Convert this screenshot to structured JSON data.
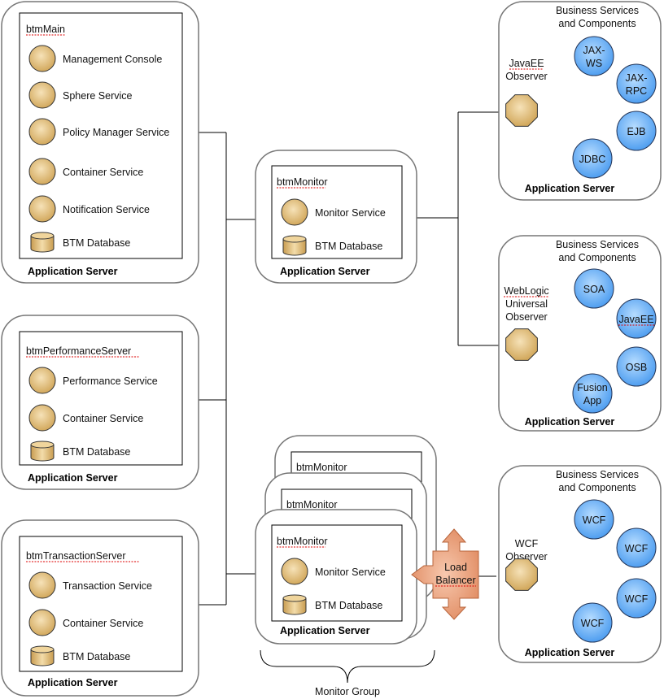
{
  "app_server_label": "Application Server",
  "main": {
    "title": "btmMain",
    "items": [
      "Management Console",
      "Sphere Service",
      "Policy Manager Service",
      "Container Service",
      "Notification Service"
    ],
    "db": "BTM Database"
  },
  "perf": {
    "title": "btmPerformanceServer",
    "items": [
      "Performance Service",
      "Container Service"
    ],
    "db": "BTM Database"
  },
  "trans": {
    "title": "btmTransactionServer",
    "items": [
      "Transaction Service",
      "Container Service"
    ],
    "db": "BTM Database"
  },
  "monitor": {
    "title": "btmMonitor",
    "service": "Monitor Service",
    "db": "BTM Database"
  },
  "monitor_group": {
    "titles": [
      "btmMonitor",
      "btmMonitor",
      "btmMonitor"
    ],
    "service": "Monitor Service",
    "db": "BTM Database",
    "label": "Monitor Group",
    "load_balancer": [
      "Load",
      "Balancer"
    ]
  },
  "business_services": [
    "Business Services",
    "and Components"
  ],
  "javaee_server": {
    "observer": [
      "JavaEE",
      "Observer"
    ],
    "components": [
      [
        "JAX-",
        "WS"
      ],
      [
        "JAX-",
        "RPC"
      ],
      [
        "EJB"
      ],
      [
        "JDBC"
      ]
    ]
  },
  "weblogic_server": {
    "observer": [
      "WebLogic",
      "Universal",
      "Observer"
    ],
    "components": [
      [
        "SOA"
      ],
      [
        "JavaEE"
      ],
      [
        "OSB"
      ],
      [
        "Fusion",
        "App"
      ]
    ]
  },
  "wcf_server": {
    "observer": [
      "WCF",
      "Observer"
    ],
    "components": [
      [
        "WCF"
      ],
      [
        "WCF"
      ],
      [
        "WCF"
      ],
      [
        "WCF"
      ]
    ]
  },
  "colors": {
    "service": "#e2bf78",
    "component": "#6fb6f5",
    "load_balancer": "#e89a72"
  }
}
